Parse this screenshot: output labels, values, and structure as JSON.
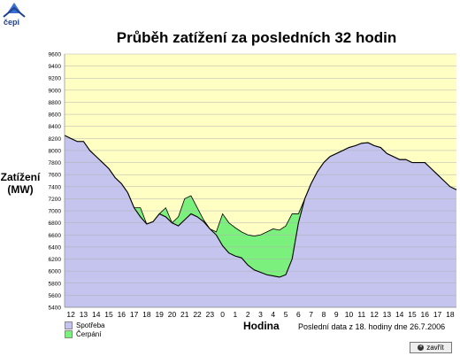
{
  "header": {
    "logo_text": "čepi"
  },
  "chart_data": {
    "type": "area",
    "title": "Průběh zatížení za posledních 32 hodin",
    "ylabel_line1": "Zatížení",
    "ylabel_line2": "(MW)",
    "xlabel": "Hodina",
    "ylim": [
      5400,
      9600
    ],
    "ytick_step": 200,
    "x_ticks": [
      "12",
      "13",
      "14",
      "15",
      "16",
      "17",
      "18",
      "19",
      "20",
      "21",
      "22",
      "23",
      "0",
      "1",
      "2",
      "3",
      "4",
      "5",
      "6",
      "7",
      "8",
      "9",
      "10",
      "11",
      "12",
      "13",
      "14",
      "15",
      "16",
      "17",
      "18"
    ],
    "grid": true,
    "legend_position": "bottom-left",
    "series": [
      {
        "name": "Spotřeba",
        "color": "#c4c4ee",
        "x": [
          11.5,
          12,
          12.5,
          13,
          13.5,
          14,
          14.5,
          15,
          15.5,
          16,
          16.5,
          17,
          17.5,
          18,
          18.5,
          19,
          19.5,
          20,
          20.5,
          21,
          21.5,
          22,
          22.5,
          23,
          23.5,
          24,
          24.5,
          25,
          25.5,
          26,
          26.5,
          27,
          27.5,
          28,
          28.5,
          29,
          29.5,
          30,
          30.5,
          31,
          31.5,
          32,
          32.5,
          33,
          33.5,
          34,
          34.5,
          35,
          35.5,
          36,
          36.5,
          37,
          37.5,
          38,
          38.5,
          39,
          39.5,
          40,
          40.5,
          41,
          41.5,
          42,
          42.5
        ],
        "values": [
          8250,
          8200,
          8150,
          8150,
          8000,
          7900,
          7800,
          7700,
          7550,
          7450,
          7300,
          7050,
          6900,
          6780,
          6820,
          6950,
          6900,
          6800,
          6750,
          6850,
          6950,
          6900,
          6820,
          6700,
          6600,
          6420,
          6300,
          6250,
          6220,
          6100,
          6020,
          5980,
          5940,
          5920,
          5900,
          5940,
          6200,
          6800,
          7200,
          7450,
          7650,
          7800,
          7900,
          7950,
          8000,
          8050,
          8080,
          8120,
          8130,
          8080,
          8050,
          7950,
          7900,
          7850,
          7850,
          7800,
          7800,
          7800,
          7700,
          7600,
          7500,
          7400,
          7350
        ]
      },
      {
        "name": "Čerpání",
        "color": "#7cf07c",
        "x": [
          11.5,
          12,
          12.5,
          13,
          13.5,
          14,
          14.5,
          15,
          15.5,
          16,
          16.5,
          17,
          17.5,
          18,
          18.5,
          19,
          19.5,
          20,
          20.5,
          21,
          21.5,
          22,
          22.5,
          23,
          23.5,
          24,
          24.5,
          25,
          25.5,
          26,
          26.5,
          27,
          27.5,
          28,
          28.5,
          29,
          29.5,
          30,
          30.5,
          31,
          31.5,
          32,
          32.5,
          33,
          33.5,
          34,
          34.5,
          35,
          35.5,
          36,
          36.5,
          37,
          37.5,
          38,
          38.5,
          39,
          39.5,
          40,
          40.5,
          41,
          41.5,
          42,
          42.5
        ],
        "values": [
          8250,
          8200,
          8150,
          8150,
          8000,
          7900,
          7800,
          7700,
          7550,
          7450,
          7300,
          7050,
          7050,
          6780,
          6820,
          6950,
          7050,
          6800,
          6900,
          7200,
          7250,
          7050,
          6850,
          6700,
          6650,
          6950,
          6800,
          6720,
          6650,
          6600,
          6580,
          6600,
          6650,
          6700,
          6680,
          6750,
          6950,
          6950,
          7200,
          7450,
          7650,
          7800,
          7900,
          7950,
          8000,
          8050,
          8080,
          8120,
          8130,
          8080,
          8050,
          7950,
          7900,
          7850,
          7850,
          7800,
          7800,
          7800,
          7700,
          7600,
          7500,
          7400,
          7350
        ]
      }
    ],
    "annotation": "Poslední data z 18. hodiny dne 26.7.2006"
  },
  "ui": {
    "close_label": "zavřít"
  }
}
